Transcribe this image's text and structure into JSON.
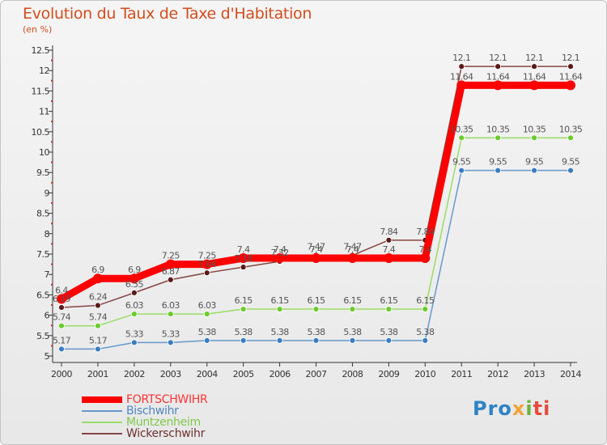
{
  "title": "Evolution du Taux de Taxe d'Habitation",
  "subtitle": "(en %)",
  "logo": {
    "p1": "Pro",
    "p2": "x",
    "p3": "i",
    "p4": "ti"
  },
  "chart_data": {
    "type": "line",
    "title": "Evolution du Taux de Taxe d'Habitation",
    "ylabel": "(en %)",
    "xlabel": "",
    "x": [
      "2000",
      "2001",
      "2002",
      "2003",
      "2004",
      "2005",
      "2006",
      "2007",
      "2008",
      "2009",
      "2010",
      "2011",
      "2012",
      "2013",
      "2014"
    ],
    "ylim": [
      5,
      12.5
    ],
    "yticks": [
      "5",
      "5.5",
      "6",
      "6.5",
      "7",
      "7.5",
      "8",
      "8.5",
      "9",
      "9.5",
      "10",
      "10.5",
      "11",
      "11.5",
      "12",
      "12.5"
    ],
    "grid": false,
    "legend_position": "bottom-left",
    "series": [
      {
        "name": "FORTSCHWIHR",
        "color": "#ff0000",
        "values": [
          6.4,
          6.9,
          6.9,
          7.25,
          7.25,
          7.4,
          7.4,
          7.4,
          7.4,
          7.4,
          7.4,
          11.64,
          11.64,
          11.64,
          11.64
        ]
      },
      {
        "name": "Bischwihr",
        "color": "#6699cc",
        "values": [
          5.17,
          5.17,
          5.33,
          5.33,
          5.38,
          5.38,
          5.38,
          5.38,
          5.38,
          5.38,
          5.38,
          9.55,
          9.55,
          9.55,
          9.55
        ]
      },
      {
        "name": "Muntzenheim",
        "color": "#99dd66",
        "values": [
          5.74,
          5.74,
          6.03,
          6.03,
          6.03,
          6.15,
          6.15,
          6.15,
          6.15,
          6.15,
          6.15,
          10.35,
          10.35,
          10.35,
          10.35
        ]
      },
      {
        "name": "Wickerschwihr",
        "color": "#884444",
        "values": [
          6.19,
          6.24,
          6.55,
          6.87,
          7.04,
          7.18,
          7.32,
          7.47,
          7.47,
          7.84,
          7.84,
          12.1,
          12.1,
          12.1,
          12.1
        ]
      }
    ]
  }
}
